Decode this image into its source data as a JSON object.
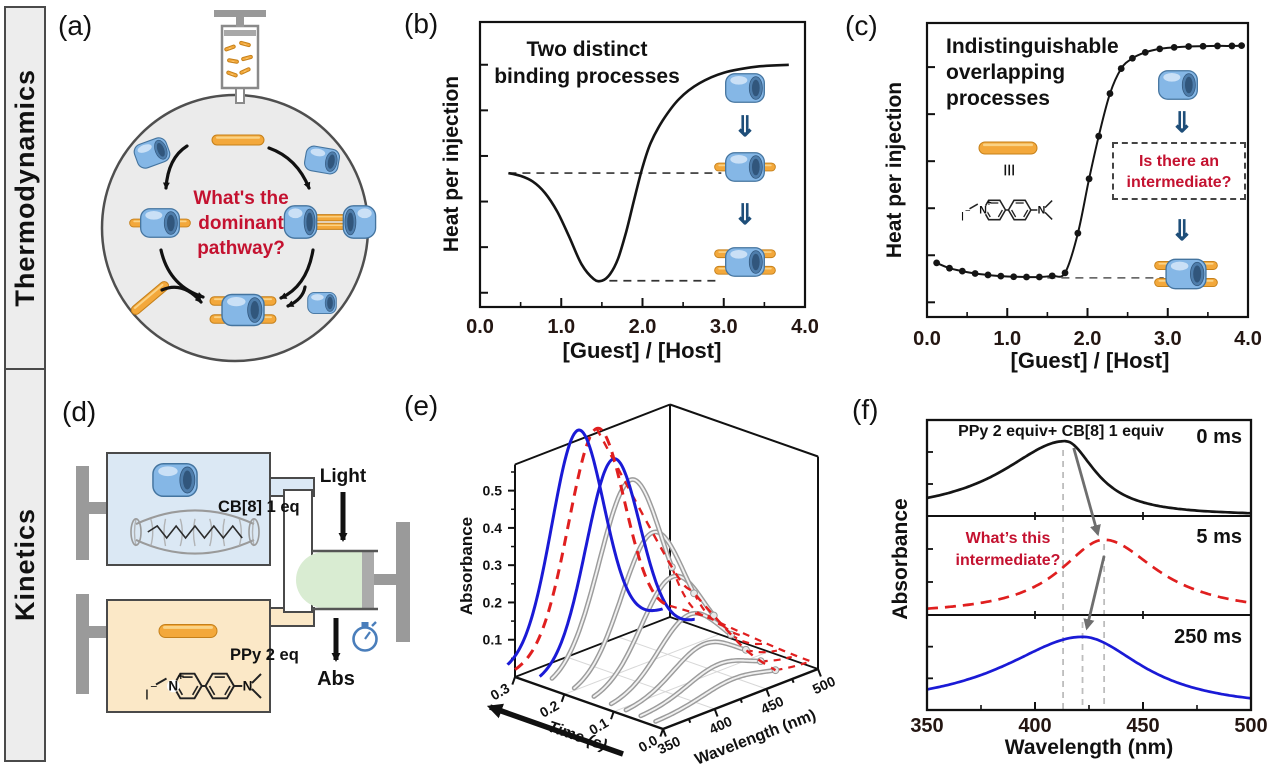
{
  "colors": {
    "accent_red": "#C41230",
    "host_blue": "#85B7E6",
    "host_blue_dark": "#44749F",
    "host_opening": "#4E7DAB",
    "guest_orange": "#F3A83B",
    "guest_orange_dark": "#C5801A",
    "double_arrow_blue": "#1E4E79",
    "curve_black": "#151515",
    "curve_red": "#E01F1F",
    "curve_blue": "#1A1AD6",
    "tube_gray": "#9a9a9a",
    "chamber_blue": "#DBE8F4",
    "chamber_orange": "#FBE8C7",
    "cell_green": "#D9ECD2",
    "apparatus_gray": "#9A9A9A",
    "sidebar_bg": "#EDEDED",
    "flask_bg": "#EBEBEB",
    "stopwatch_blue": "#4A7EBB",
    "dash_gray": "#bdbdbd",
    "arrow_gray": "#6e6e6e"
  },
  "sidebar": {
    "top": "Thermodynamics",
    "bottom": "Kinetics"
  },
  "panel_labels": {
    "a": "(a)",
    "b": "(b)",
    "c": "(c)",
    "d": "(d)",
    "e": "(e)",
    "f": "(f)"
  },
  "panel_a": {
    "q1": "What's the",
    "q2": "dominant",
    "q3": "pathway?"
  },
  "panel_b": {
    "title1": "Two distinct",
    "title2": "binding processes",
    "ylabel": "Heat per injection",
    "xlabel": "[Guest] / [Host]"
  },
  "panel_c": {
    "title1": "Indistinguishable",
    "title2": "overlapping",
    "title3": "processes",
    "q1": "Is there an",
    "q2": "intermediate?",
    "ylabel": "Heat per injection",
    "xlabel": "[Guest] / [Host]",
    "equiv": "≡"
  },
  "panel_d": {
    "cb8": "CB[8] 1 eq",
    "ppy": "PPy 2 eq",
    "light": "Light",
    "abs": "Abs"
  },
  "panel_e": {
    "xlabel": "Wavelength (nm)",
    "ylabel": "Time (s)",
    "zlabel": "Absorbance"
  },
  "panel_f": {
    "header": "PPy 2 equiv+ CB[8] 1 equiv",
    "q1": "What’s this",
    "q2": "intermediate?",
    "t0": "0 ms",
    "t1": "5 ms",
    "t2": "250 ms",
    "ylabel": "Absorbance",
    "xlabel": "Wavelength (nm)"
  },
  "structure": {
    "n": "N",
    "plus": "+",
    "i": "I",
    "minus": "−"
  },
  "symbols": {
    "double_down_arrow": "⇓"
  },
  "chart_data": [
    {
      "id": "b",
      "type": "line",
      "title": "Two distinct binding processes",
      "xlabel": "[Guest] / [Host]",
      "ylabel": "Heat per injection",
      "xlim": [
        0,
        4
      ],
      "xticks": [
        0,
        1,
        2,
        3,
        4
      ],
      "xtick_labels": [
        "0.0",
        "1.0",
        "2.0",
        "3.0",
        "4.0"
      ],
      "minor_xticks": [
        0.5,
        1.5,
        2.5,
        3.5
      ],
      "note": "y axis unlabeled; values normalized 0-1 of plot height",
      "curve": [
        [
          0.35,
          0.47
        ],
        [
          0.5,
          0.46
        ],
        [
          0.65,
          0.44
        ],
        [
          0.8,
          0.4
        ],
        [
          0.95,
          0.335
        ],
        [
          1.1,
          0.245
        ],
        [
          1.25,
          0.15
        ],
        [
          1.4,
          0.098
        ],
        [
          1.5,
          0.092
        ],
        [
          1.6,
          0.115
        ],
        [
          1.7,
          0.17
        ],
        [
          1.8,
          0.265
        ],
        [
          1.9,
          0.38
        ],
        [
          2.0,
          0.49
        ],
        [
          2.1,
          0.575
        ],
        [
          2.25,
          0.655
        ],
        [
          2.45,
          0.73
        ],
        [
          2.7,
          0.785
        ],
        [
          3.0,
          0.822
        ],
        [
          3.4,
          0.843
        ],
        [
          3.8,
          0.85
        ]
      ],
      "guides": [
        {
          "y": 0.47,
          "x1": 0.35,
          "x2": 2.97
        },
        {
          "y": 0.092,
          "x1": 1.42,
          "x2": 2.97
        }
      ]
    },
    {
      "id": "c",
      "type": "scatter-line",
      "title": "Indistinguishable overlapping processes",
      "xlabel": "[Guest] / [Host]",
      "ylabel": "Heat per injection",
      "xlim": [
        0,
        4
      ],
      "xticks": [
        0,
        1,
        2,
        3,
        4
      ],
      "xtick_labels": [
        "0.0",
        "1.0",
        "2.0",
        "3.0",
        "4.0"
      ],
      "minor_xticks": [
        0.5,
        1.5,
        2.5,
        3.5
      ],
      "note": "y axis unlabeled; values normalized 0-1 of plot height",
      "points": [
        [
          0.12,
          0.184
        ],
        [
          0.28,
          0.166
        ],
        [
          0.44,
          0.156
        ],
        [
          0.6,
          0.148
        ],
        [
          0.76,
          0.143
        ],
        [
          0.92,
          0.139
        ],
        [
          1.08,
          0.137
        ],
        [
          1.24,
          0.136
        ],
        [
          1.4,
          0.136
        ],
        [
          1.56,
          0.14
        ],
        [
          1.72,
          0.15
        ],
        [
          1.88,
          0.285
        ],
        [
          2.02,
          0.47
        ],
        [
          2.14,
          0.615
        ],
        [
          2.28,
          0.76
        ],
        [
          2.42,
          0.845
        ],
        [
          2.56,
          0.88
        ],
        [
          2.72,
          0.9
        ],
        [
          2.9,
          0.912
        ],
        [
          3.08,
          0.917
        ],
        [
          3.26,
          0.92
        ],
        [
          3.44,
          0.921
        ],
        [
          3.62,
          0.922
        ],
        [
          3.8,
          0.922
        ],
        [
          3.92,
          0.923
        ]
      ],
      "guide": {
        "y": 0.133,
        "x1": 1.5,
        "x2": 2.95
      }
    },
    {
      "id": "e",
      "type": "3d-waterfall",
      "xlabel": "Wavelength (nm)",
      "xlim": [
        350,
        500
      ],
      "xticks": [
        350,
        400,
        450,
        500
      ],
      "minor_xticks": [
        375,
        425,
        475
      ],
      "ylabel": "Time (s)",
      "ylim": [
        0,
        0.3
      ],
      "yticks": [
        0,
        0.1,
        0.2,
        0.3
      ],
      "ytick_labels": [
        "0.0",
        "0.1",
        "0.2",
        "0.3"
      ],
      "zlabel": "Absorbance",
      "zlim": [
        0,
        0.55
      ],
      "zticks": [
        0.1,
        0.2,
        0.3,
        0.4,
        0.5
      ],
      "ztick_labels": [
        "0.1",
        "0.2",
        "0.3",
        "0.4",
        "0.5"
      ],
      "gray_cut_wl": 466,
      "slices": [
        {
          "t": 0.015,
          "amp": 0.035,
          "center": 426,
          "sigma": 30,
          "style": "gray"
        },
        {
          "t": 0.045,
          "amp": 0.06,
          "center": 426,
          "sigma": 30,
          "style": "gray"
        },
        {
          "t": 0.075,
          "amp": 0.1,
          "center": 426,
          "sigma": 30,
          "style": "gray"
        },
        {
          "t": 0.105,
          "amp": 0.165,
          "center": 426,
          "sigma": 30,
          "style": "gray"
        },
        {
          "t": 0.14,
          "amp": 0.25,
          "center": 426,
          "sigma": 30,
          "style": "gray"
        },
        {
          "t": 0.18,
          "amp": 0.35,
          "center": 426,
          "sigma": 30,
          "style": "gray"
        },
        {
          "t": 0.225,
          "amp": 0.47,
          "center": 426,
          "sigma": 30,
          "style": "gray"
        },
        {
          "t": 0.25,
          "amp": 0.52,
          "center": 421,
          "sigma": 26,
          "style": "blue-solid"
        },
        {
          "t": 0.3,
          "amp": 0.57,
          "center": 429,
          "sigma": 27,
          "style": "red-dashed"
        },
        {
          "t": 0.315,
          "amp": 0.57,
          "center": 418,
          "sigma": 25,
          "style": "blue-solid"
        }
      ]
    },
    {
      "id": "f",
      "type": "spectra-stack",
      "xlabel": "Wavelength (nm)",
      "xlim": [
        350,
        500
      ],
      "xticks": [
        350,
        400,
        450,
        500
      ],
      "xtick_labels": [
        "350",
        "400",
        "450",
        "500"
      ],
      "minor_xticks": [
        375,
        425,
        475
      ],
      "ylabel": "Absorbance",
      "header": "PPy 2 equiv+ CB[8] 1 equiv",
      "annotation": "What’s this intermediate?",
      "bands": [
        {
          "time": "0 ms",
          "color": "black",
          "dashed": false,
          "peak_nm": 414,
          "amp": 0.78,
          "width_left": 36,
          "width_right": 17
        },
        {
          "time": "5 ms",
          "color": "red",
          "dashed": true,
          "peak_nm": 432,
          "amp": 0.76,
          "width_left": 25,
          "width_right": 30
        },
        {
          "time": "250 ms",
          "color": "blue",
          "dashed": false,
          "peak_nm": 422,
          "amp": 0.77,
          "width_left": 45,
          "width_right": 34
        }
      ],
      "guide_wavelengths": [
        413,
        422,
        432
      ]
    }
  ]
}
